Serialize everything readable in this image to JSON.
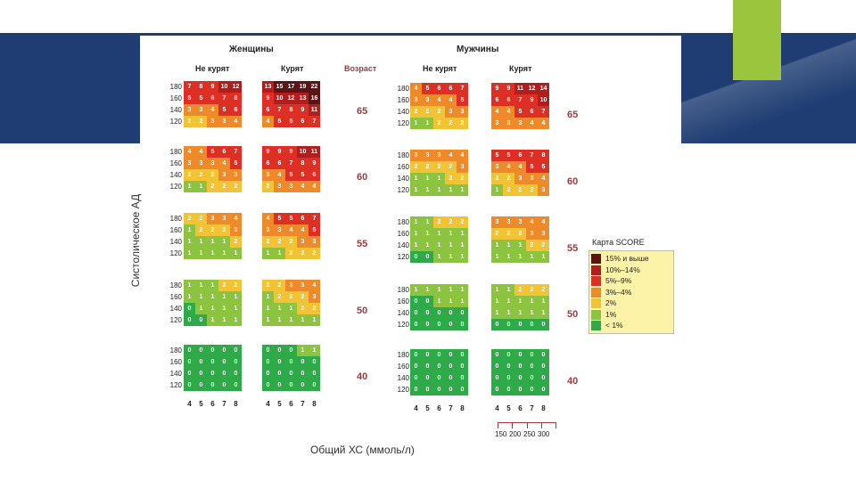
{
  "chart_data": {
    "type": "heatmap",
    "title": "Карта SCORE",
    "ylabel": "Систолическое АД",
    "xlabel": "Общий ХС (ммоль/л)",
    "sex_labels": {
      "women": "Женщины",
      "men": "Мужчины"
    },
    "smoke_labels": {
      "non_smoker": "Не курят",
      "smoker": "Курят"
    },
    "age_header": "Возраст",
    "sbp_levels": [
      "180",
      "160",
      "140",
      "120"
    ],
    "chol_mmol": [
      "4",
      "5",
      "6",
      "7",
      "8"
    ],
    "chol_mg": [
      "150",
      "200",
      "250",
      "300"
    ],
    "ages": [
      "65",
      "60",
      "55",
      "50",
      "40"
    ],
    "risk": {
      "women_nonsmoker": [
        [
          [
            7,
            8,
            9,
            10,
            12
          ],
          [
            5,
            5,
            6,
            7,
            8
          ],
          [
            3,
            3,
            4,
            5,
            6
          ],
          [
            2,
            2,
            3,
            3,
            4
          ]
        ],
        [
          [
            4,
            4,
            5,
            6,
            7
          ],
          [
            3,
            3,
            3,
            4,
            5
          ],
          [
            2,
            2,
            2,
            3,
            3
          ],
          [
            1,
            1,
            2,
            2,
            2
          ]
        ],
        [
          [
            2,
            2,
            3,
            3,
            4
          ],
          [
            1,
            2,
            2,
            2,
            3
          ],
          [
            1,
            1,
            1,
            1,
            2
          ],
          [
            1,
            1,
            1,
            1,
            1
          ]
        ],
        [
          [
            1,
            1,
            1,
            2,
            2
          ],
          [
            1,
            1,
            1,
            1,
            1
          ],
          [
            0,
            1,
            1,
            1,
            1
          ],
          [
            0,
            0,
            1,
            1,
            1
          ]
        ],
        [
          [
            0,
            0,
            0,
            0,
            0
          ],
          [
            0,
            0,
            0,
            0,
            0
          ],
          [
            0,
            0,
            0,
            0,
            0
          ],
          [
            0,
            0,
            0,
            0,
            0
          ]
        ]
      ],
      "women_smoker": [
        [
          [
            13,
            15,
            17,
            19,
            22
          ],
          [
            9,
            10,
            12,
            13,
            16
          ],
          [
            6,
            7,
            8,
            9,
            11
          ],
          [
            4,
            5,
            5,
            6,
            7
          ]
        ],
        [
          [
            9,
            9,
            9,
            10,
            11
          ],
          [
            6,
            6,
            7,
            8,
            9
          ],
          [
            3,
            4,
            5,
            5,
            6
          ],
          [
            2,
            3,
            3,
            4,
            4
          ]
        ],
        [
          [
            4,
            5,
            5,
            6,
            7
          ],
          [
            3,
            3,
            4,
            4,
            5
          ],
          [
            2,
            2,
            2,
            3,
            3
          ],
          [
            1,
            1,
            2,
            2,
            2
          ]
        ],
        [
          [
            2,
            2,
            3,
            3,
            4
          ],
          [
            1,
            2,
            2,
            2,
            3
          ],
          [
            1,
            1,
            1,
            2,
            2
          ],
          [
            1,
            1,
            1,
            1,
            1
          ]
        ],
        [
          [
            0,
            0,
            0,
            1,
            1
          ],
          [
            0,
            0,
            0,
            0,
            0
          ],
          [
            0,
            0,
            0,
            0,
            0
          ],
          [
            0,
            0,
            0,
            0,
            0
          ]
        ]
      ],
      "men_nonsmoker": [
        [
          [
            4,
            5,
            6,
            6,
            7
          ],
          [
            3,
            3,
            4,
            4,
            5
          ],
          [
            2,
            2,
            2,
            3,
            3
          ],
          [
            1,
            1,
            2,
            2,
            2
          ]
        ],
        [
          [
            3,
            3,
            3,
            4,
            4
          ],
          [
            2,
            2,
            2,
            2,
            3
          ],
          [
            1,
            1,
            1,
            2,
            2
          ],
          [
            1,
            1,
            1,
            1,
            1
          ]
        ],
        [
          [
            1,
            1,
            2,
            2,
            2
          ],
          [
            1,
            1,
            1,
            1,
            1
          ],
          [
            1,
            1,
            1,
            1,
            1
          ],
          [
            0,
            0,
            1,
            1,
            1
          ]
        ],
        [
          [
            1,
            1,
            1,
            1,
            1
          ],
          [
            0,
            0,
            1,
            1,
            1
          ],
          [
            0,
            0,
            0,
            0,
            0
          ],
          [
            0,
            0,
            0,
            0,
            0
          ]
        ],
        [
          [
            0,
            0,
            0,
            0,
            0
          ],
          [
            0,
            0,
            0,
            0,
            0
          ],
          [
            0,
            0,
            0,
            0,
            0
          ],
          [
            0,
            0,
            0,
            0,
            0
          ]
        ]
      ],
      "men_smoker": [
        [
          [
            9,
            9,
            11,
            12,
            14
          ],
          [
            6,
            6,
            7,
            9,
            10
          ],
          [
            4,
            4,
            5,
            6,
            7
          ],
          [
            3,
            3,
            3,
            4,
            4
          ]
        ],
        [
          [
            5,
            5,
            6,
            7,
            8
          ],
          [
            3,
            4,
            4,
            5,
            5
          ],
          [
            2,
            2,
            3,
            3,
            4
          ],
          [
            1,
            2,
            2,
            2,
            3
          ]
        ],
        [
          [
            3,
            3,
            3,
            4,
            4
          ],
          [
            2,
            2,
            2,
            3,
            3
          ],
          [
            1,
            1,
            1,
            2,
            2
          ],
          [
            1,
            1,
            1,
            1,
            1
          ]
        ],
        [
          [
            1,
            1,
            2,
            2,
            2
          ],
          [
            1,
            1,
            1,
            1,
            1
          ],
          [
            1,
            1,
            1,
            1,
            1
          ],
          [
            0,
            0,
            0,
            0,
            0
          ]
        ],
        [
          [
            0,
            0,
            0,
            0,
            0
          ],
          [
            0,
            0,
            0,
            0,
            0
          ],
          [
            0,
            0,
            0,
            0,
            0
          ],
          [
            0,
            0,
            0,
            0,
            0
          ]
        ]
      ]
    },
    "legend": [
      {
        "label": "15% и выше",
        "color": "#5a1414"
      },
      {
        "label": "10%–14%",
        "color": "#b01e1e"
      },
      {
        "label": "5%–9%",
        "color": "#dd2f24"
      },
      {
        "label": "3%–4%",
        "color": "#ef8a2a"
      },
      {
        "label": "2%",
        "color": "#f2c335"
      },
      {
        "label": "1%",
        "color": "#8cc440"
      },
      {
        "label": "< 1%",
        "color": "#2eaa48"
      }
    ]
  }
}
